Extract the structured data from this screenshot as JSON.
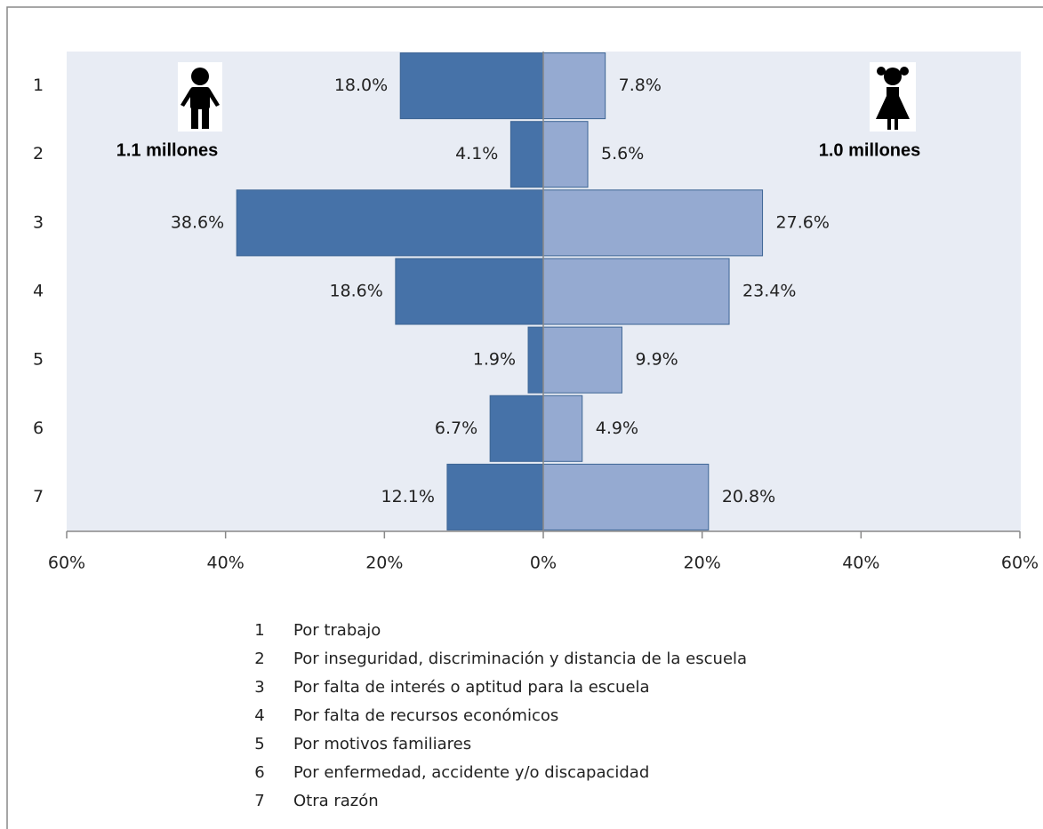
{
  "chart_data": {
    "type": "butterfly-bar",
    "categories": [
      "1",
      "2",
      "3",
      "4",
      "5",
      "6",
      "7"
    ],
    "series": [
      {
        "color": "#4672a8",
        "values": [
          -18.0,
          -4.1,
          -38.6,
          -18.6,
          -1.9,
          -6.7,
          -12.1
        ],
        "value_labels": [
          "18.0%",
          "4.1%",
          "38.6%",
          "18.6%",
          "1.9%",
          "6.7%",
          "12.1%"
        ]
      },
      {
        "color": "#95aad1",
        "values": [
          7.8,
          5.6,
          27.6,
          23.4,
          9.9,
          4.9,
          20.8
        ],
        "value_labels": [
          "7.8%",
          "5.6%",
          "27.6%",
          "23.4%",
          "9.9%",
          "4.9%",
          "20.8%"
        ]
      }
    ],
    "xlim": [
      -60,
      60
    ],
    "xticks": [
      {
        "value": -60,
        "label": "60%"
      },
      {
        "value": -40,
        "label": "40%"
      },
      {
        "value": -20,
        "label": "20%"
      },
      {
        "value": 0,
        "label": "0%"
      },
      {
        "value": 20,
        "label": "20%"
      },
      {
        "value": 40,
        "label": "40%"
      },
      {
        "value": 60,
        "label": "60%"
      }
    ],
    "annotations": [
      "1.1 millones",
      "1.0 millones"
    ],
    "legend_items": [
      {
        "number": "1",
        "text": "Por trabajo"
      },
      {
        "number": "2",
        "text": "Por inseguridad, discriminación y distancia de la escuela"
      },
      {
        "number": "3",
        "text": "Por falta de interés o aptitud para la escuela"
      },
      {
        "number": "4",
        "text": "Por falta de recursos económicos"
      },
      {
        "number": "5",
        "text": "Por motivos familiares"
      },
      {
        "number": "6",
        "text": "Por enfermedad, accidente y/o discapacidad"
      },
      {
        "number": "7",
        "text": "Otra razón"
      }
    ]
  }
}
